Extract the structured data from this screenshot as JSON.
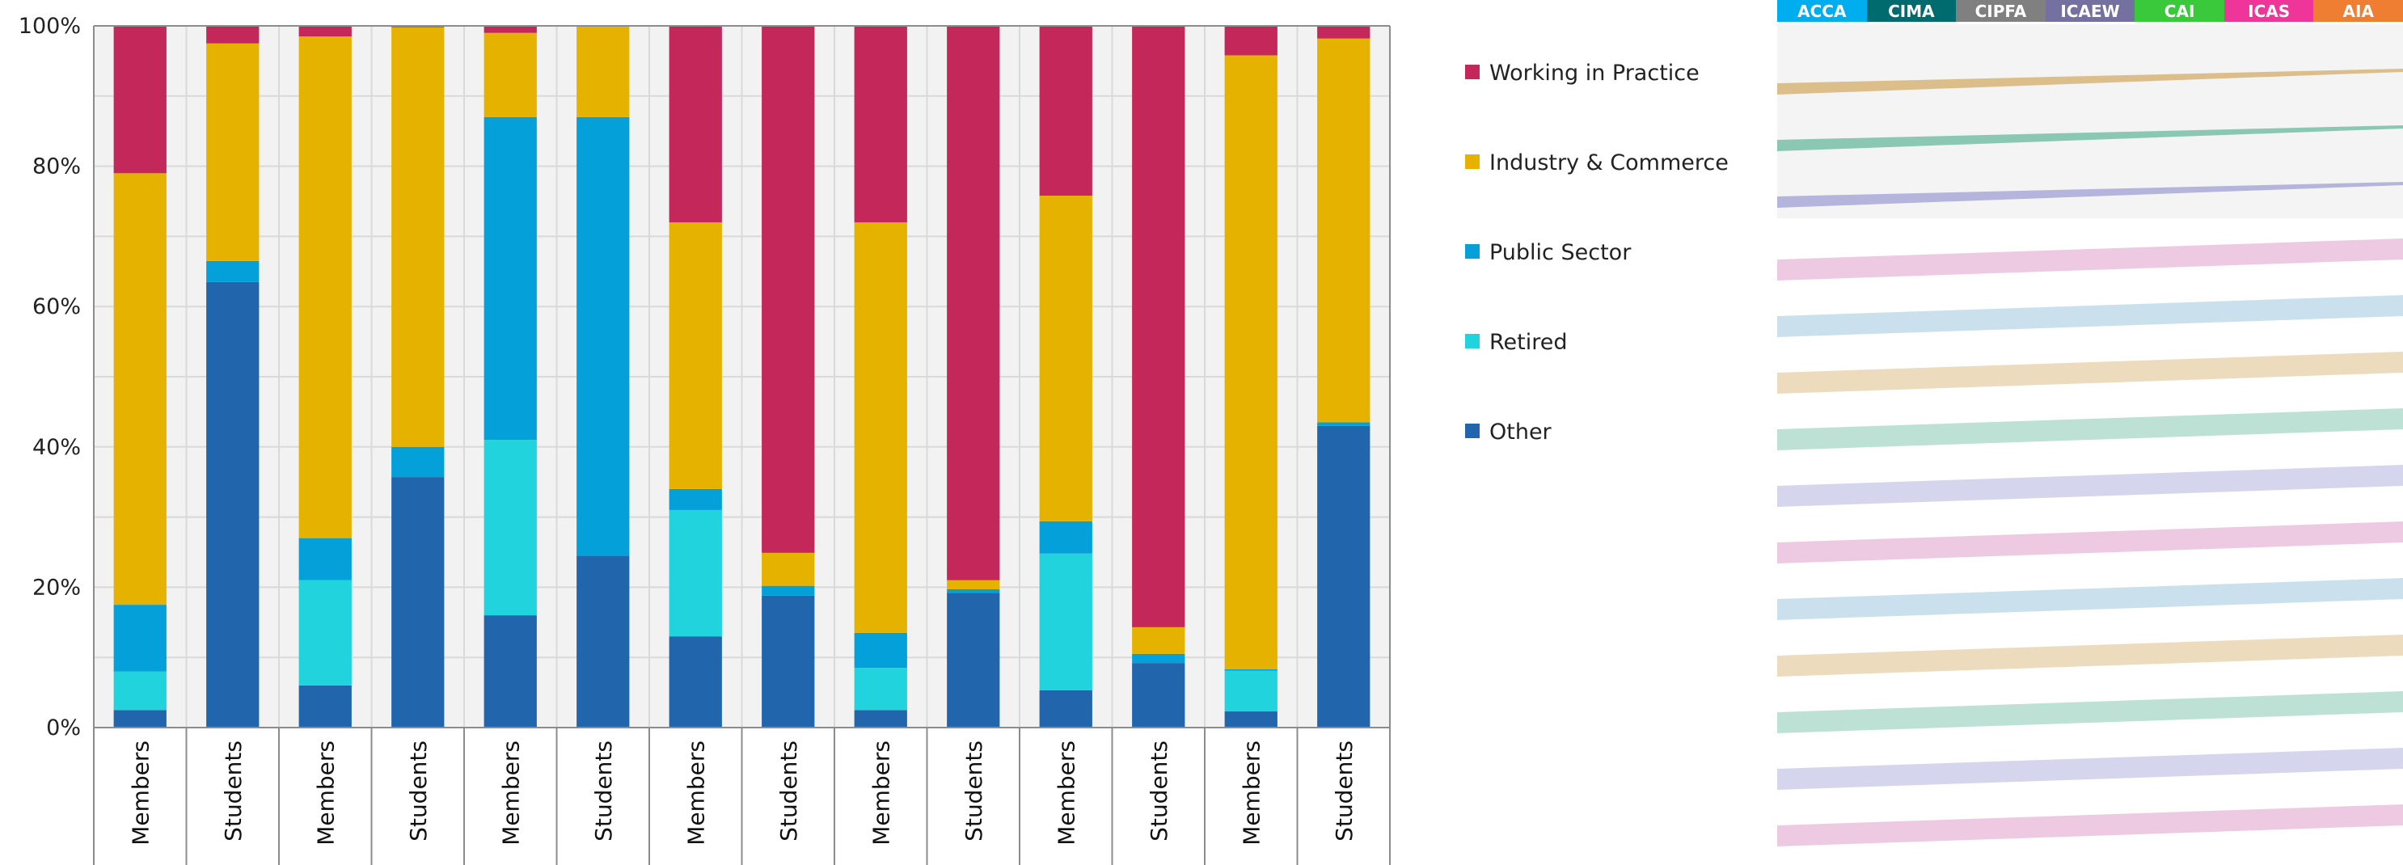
{
  "chart_data": {
    "type": "bar",
    "stacked": "percent",
    "categories": [
      "Members",
      "Students",
      "Members",
      "Students",
      "Members",
      "Students",
      "Members",
      "Students",
      "Members",
      "Students",
      "Members",
      "Students",
      "Members",
      "Students"
    ],
    "series": [
      {
        "name": "Other",
        "color": "#2166AC",
        "values": [
          2.5,
          63.5,
          6,
          35.7,
          16,
          24.5,
          13,
          18.8,
          2.5,
          19.2,
          5.3,
          9.2,
          2.3,
          43
        ]
      },
      {
        "name": "Retired",
        "color": "#20D3DD",
        "values": [
          5.5,
          0,
          15,
          0,
          25,
          0,
          18,
          0,
          6,
          0,
          19.5,
          0,
          5.8,
          0
        ]
      },
      {
        "name": "Public Sector",
        "color": "#03A0DA",
        "values": [
          9.5,
          3,
          6,
          4.3,
          46,
          62.5,
          3,
          1.4,
          5,
          0.5,
          4.6,
          1.3,
          0.2,
          0.5
        ]
      },
      {
        "name": "Industry & Commerce",
        "color": "#E6B200",
        "values": [
          61.5,
          31,
          71.5,
          59.8,
          12,
          13,
          38,
          4.7,
          58.5,
          1.3,
          46.4,
          3.8,
          87.5,
          54.7
        ]
      },
      {
        "name": "Working in Practice",
        "color": "#C4275A",
        "values": [
          21,
          2.5,
          1.5,
          0.2,
          1,
          0,
          28,
          75.1,
          28,
          79,
          24.2,
          85.7,
          4.2,
          1.8
        ]
      }
    ],
    "ylim": [
      0,
      100
    ],
    "yticks": [
      "0%",
      "20%",
      "40%",
      "60%",
      "80%",
      "100%"
    ],
    "grid": true,
    "legend_placement": "right",
    "legend_order": [
      "Working in Practice",
      "Industry & Commerce",
      "Public Sector",
      "Retired",
      "Other"
    ]
  },
  "panel": {
    "tabs": [
      {
        "label": "ACCA",
        "color": "#00AEEF"
      },
      {
        "label": "CIMA",
        "color": "#006B6E"
      },
      {
        "label": "CIPFA",
        "color": "#808080"
      },
      {
        "label": "ICAEW",
        "color": "#7470A0"
      },
      {
        "label": "CAI",
        "color": "#39C93A"
      },
      {
        "label": "ICAS",
        "color": "#F0359A"
      },
      {
        "label": "AIA",
        "color": "#EF7D32"
      }
    ]
  }
}
